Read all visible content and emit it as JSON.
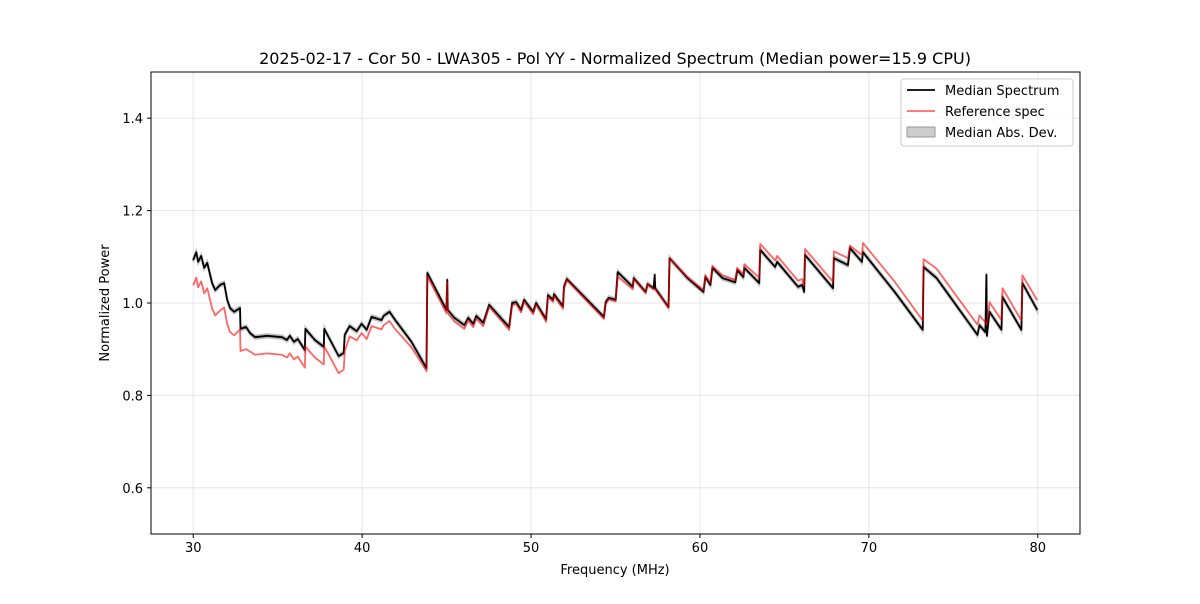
{
  "chart_data": {
    "type": "line",
    "title": "2025-02-17 - Cor 50 - LWA305 - Pol YY - Normalized Spectrum (Median power=15.9 CPU)",
    "xlabel": "Frequency (MHz)",
    "ylabel": "Normalized Power",
    "xlim": [
      27.5,
      82.5
    ],
    "ylim": [
      0.5,
      1.5
    ],
    "xticks": [
      30,
      40,
      50,
      60,
      70,
      80
    ],
    "xtick_labels": [
      "30",
      "40",
      "50",
      "60",
      "70",
      "80"
    ],
    "yticks": [
      0.6,
      0.8,
      1.0,
      1.2,
      1.4
    ],
    "ytick_labels": [
      "0.6",
      "0.8",
      "1.0",
      "1.2",
      "1.4"
    ],
    "grid": true,
    "legend_position": "top-right",
    "legend": [
      "Median Spectrum",
      "Reference spec",
      "Median Abs. Dev."
    ],
    "colors": {
      "median": "#000000",
      "reference": "#ff0000",
      "mad": "#999999"
    },
    "x": [
      30.0,
      30.18,
      30.29,
      30.47,
      30.65,
      30.83,
      31.0,
      31.12,
      31.3,
      31.59,
      31.83,
      32.01,
      32.18,
      32.42,
      32.77,
      32.8,
      33.13,
      33.36,
      33.66,
      34.37,
      35.25,
      35.55,
      35.72,
      35.96,
      36.19,
      36.61,
      36.64,
      37.2,
      37.73,
      37.76,
      38.61,
      38.91,
      38.97,
      39.26,
      39.68,
      39.97,
      40.27,
      40.56,
      41.15,
      41.27,
      41.62,
      41.92,
      42.92,
      43.81,
      43.86,
      44.99,
      45.04,
      45.07,
      45.46,
      46.05,
      46.28,
      46.58,
      46.76,
      47.17,
      47.52,
      48.7,
      48.88,
      49.12,
      49.41,
      49.59,
      50.12,
      50.3,
      50.89,
      51.0,
      51.3,
      51.36,
      51.89,
      51.95,
      52.12,
      54.31,
      54.42,
      54.6,
      55.01,
      55.13,
      56.02,
      56.08,
      56.78,
      56.9,
      57.26,
      57.32,
      57.35,
      58.14,
      58.2,
      59.26,
      60.21,
      60.32,
      60.62,
      60.74,
      61.33,
      62.09,
      62.21,
      62.57,
      62.63,
      63.51,
      63.57,
      64.45,
      64.57,
      65.81,
      66.05,
      66.17,
      66.22,
      67.88,
      67.93,
      68.76,
      68.88,
      69.59,
      69.65,
      71.53,
      73.19,
      73.24,
      74.01,
      76.43,
      76.55,
      76.9,
      76.96,
      76.99,
      77.14,
      77.85,
      77.91,
      79.03,
      79.09,
      79.97
    ],
    "series": [
      {
        "name": "Median Spectrum",
        "values": [
          1.093,
          1.11,
          1.089,
          1.102,
          1.076,
          1.087,
          1.061,
          1.043,
          1.028,
          1.039,
          1.043,
          1.007,
          0.989,
          0.981,
          0.989,
          0.944,
          0.948,
          0.935,
          0.926,
          0.929,
          0.926,
          0.92,
          0.929,
          0.916,
          0.922,
          0.898,
          0.944,
          0.92,
          0.905,
          0.944,
          0.885,
          0.892,
          0.931,
          0.95,
          0.939,
          0.955,
          0.942,
          0.97,
          0.963,
          0.972,
          0.981,
          0.965,
          0.916,
          0.859,
          1.065,
          0.985,
          1.05,
          0.985,
          0.968,
          0.952,
          0.968,
          0.955,
          0.972,
          0.957,
          0.996,
          0.948,
          1.0,
          1.002,
          0.985,
          1.007,
          0.981,
          1.0,
          0.965,
          1.017,
          1.007,
          1.019,
          0.993,
          1.035,
          1.052,
          0.97,
          1.002,
          1.011,
          1.007,
          1.067,
          1.035,
          1.054,
          1.024,
          1.041,
          1.032,
          1.061,
          1.032,
          0.991,
          1.097,
          1.054,
          1.024,
          1.056,
          1.039,
          1.076,
          1.054,
          1.045,
          1.071,
          1.056,
          1.076,
          1.043,
          1.115,
          1.078,
          1.089,
          1.035,
          1.039,
          1.024,
          1.104,
          1.032,
          1.097,
          1.082,
          1.119,
          1.089,
          1.11,
          1.024,
          0.942,
          1.078,
          1.054,
          0.931,
          0.952,
          0.937,
          1.061,
          0.929,
          0.981,
          0.942,
          1.013,
          0.942,
          1.043,
          0.985
        ]
      },
      {
        "name": "Reference spec",
        "values": [
          1.038,
          1.055,
          1.034,
          1.047,
          1.021,
          1.032,
          1.006,
          0.988,
          0.973,
          0.984,
          0.99,
          0.955,
          0.937,
          0.93,
          0.943,
          0.896,
          0.9,
          0.895,
          0.888,
          0.891,
          0.888,
          0.882,
          0.891,
          0.878,
          0.884,
          0.86,
          0.906,
          0.882,
          0.867,
          0.906,
          0.848,
          0.856,
          0.895,
          0.928,
          0.919,
          0.935,
          0.922,
          0.95,
          0.943,
          0.952,
          0.961,
          0.945,
          0.904,
          0.853,
          1.058,
          0.978,
          1.045,
          0.978,
          0.96,
          0.944,
          0.962,
          0.948,
          0.966,
          0.95,
          0.992,
          0.942,
          0.995,
          0.998,
          0.98,
          1.003,
          0.976,
          0.996,
          0.96,
          1.013,
          1.003,
          1.015,
          0.988,
          1.032,
          1.05,
          0.966,
          0.998,
          1.008,
          1.004,
          1.057,
          1.03,
          1.052,
          1.022,
          1.04,
          1.03,
          1.03,
          1.03,
          0.99,
          1.097,
          1.056,
          1.028,
          1.06,
          1.043,
          1.08,
          1.06,
          1.05,
          1.076,
          1.062,
          1.084,
          1.055,
          1.128,
          1.092,
          1.102,
          1.048,
          1.052,
          1.037,
          1.117,
          1.046,
          1.112,
          1.097,
          1.124,
          1.104,
          1.13,
          1.046,
          0.962,
          1.095,
          1.074,
          0.953,
          0.973,
          0.958,
          0.958,
          0.952,
          1.002,
          0.963,
          1.032,
          0.962,
          1.06,
          1.006
        ]
      }
    ],
    "mad": 0.004
  }
}
